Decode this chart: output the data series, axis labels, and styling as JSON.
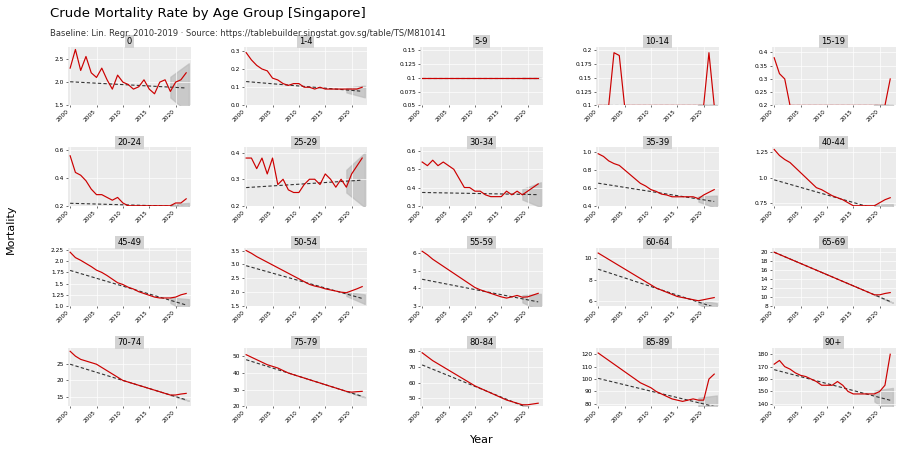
{
  "title": "Crude Mortality Rate by Age Group [Singapore]",
  "subtitle": "Baseline: Lin. Regr. 2010-2019 · Source: https://tablebuilder.singstat.gov.sg/table/TS/M810141",
  "ylabel": "Mortality",
  "xlabel": "Year",
  "background_color": "#FFFFFF",
  "panel_bg": "#EBEBEB",
  "age_groups": [
    "0",
    "1-4",
    "5-9",
    "10-14",
    "15-19",
    "20-24",
    "25-29",
    "30-34",
    "35-39",
    "40-44",
    "45-49",
    "50-54",
    "55-59",
    "60-64",
    "65-69",
    "70-74",
    "75-79",
    "80-84",
    "85-89",
    "90+"
  ],
  "years": [
    2000,
    2001,
    2002,
    2003,
    2004,
    2005,
    2006,
    2007,
    2008,
    2009,
    2010,
    2011,
    2012,
    2013,
    2014,
    2015,
    2016,
    2017,
    2018,
    2019,
    2020,
    2021,
    2022
  ],
  "data": {
    "0": [
      2.3,
      2.7,
      2.25,
      2.55,
      2.2,
      2.1,
      2.3,
      2.05,
      1.85,
      2.15,
      2.0,
      1.95,
      1.85,
      1.9,
      2.05,
      1.85,
      1.75,
      2.0,
      2.05,
      1.8,
      2.0,
      2.05,
      2.2
    ],
    "1-4": [
      0.29,
      0.25,
      0.22,
      0.2,
      0.19,
      0.15,
      0.14,
      0.12,
      0.11,
      0.12,
      0.12,
      0.1,
      0.1,
      0.09,
      0.1,
      0.09,
      0.09,
      0.09,
      0.09,
      0.09,
      0.09,
      0.09,
      0.1
    ],
    "5-9": [
      0.1,
      0.1,
      0.1,
      0.1,
      0.1,
      0.1,
      0.1,
      0.1,
      0.1,
      0.1,
      0.1,
      0.1,
      0.1,
      0.1,
      0.1,
      0.1,
      0.1,
      0.1,
      0.1,
      0.1,
      0.1,
      0.1,
      0.1
    ],
    "10-14": [
      0.1,
      0.1,
      0.1,
      0.195,
      0.19,
      0.1,
      0.1,
      0.1,
      0.1,
      0.1,
      0.1,
      0.1,
      0.1,
      0.1,
      0.1,
      0.1,
      0.1,
      0.1,
      0.1,
      0.1,
      0.1,
      0.195,
      0.1
    ],
    "15-19": [
      0.38,
      0.32,
      0.3,
      0.2,
      0.2,
      0.2,
      0.2,
      0.2,
      0.2,
      0.2,
      0.2,
      0.2,
      0.2,
      0.2,
      0.2,
      0.2,
      0.2,
      0.2,
      0.2,
      0.2,
      0.2,
      0.2,
      0.3
    ],
    "20-24": [
      0.56,
      0.44,
      0.42,
      0.38,
      0.32,
      0.28,
      0.28,
      0.26,
      0.24,
      0.26,
      0.22,
      0.2,
      0.2,
      0.2,
      0.2,
      0.2,
      0.2,
      0.2,
      0.2,
      0.2,
      0.22,
      0.22,
      0.25
    ],
    "25-29": [
      0.38,
      0.38,
      0.34,
      0.38,
      0.32,
      0.38,
      0.28,
      0.3,
      0.26,
      0.25,
      0.25,
      0.28,
      0.3,
      0.3,
      0.28,
      0.32,
      0.3,
      0.27,
      0.3,
      0.27,
      0.32,
      0.35,
      0.38
    ],
    "30-34": [
      0.54,
      0.52,
      0.55,
      0.52,
      0.54,
      0.52,
      0.5,
      0.45,
      0.4,
      0.4,
      0.38,
      0.38,
      0.36,
      0.35,
      0.35,
      0.35,
      0.38,
      0.36,
      0.38,
      0.36,
      0.38,
      0.4,
      0.42
    ],
    "35-39": [
      0.98,
      0.95,
      0.9,
      0.87,
      0.85,
      0.8,
      0.75,
      0.7,
      0.65,
      0.62,
      0.58,
      0.56,
      0.53,
      0.52,
      0.5,
      0.5,
      0.5,
      0.5,
      0.5,
      0.48,
      0.52,
      0.55,
      0.58
    ],
    "40-44": [
      1.28,
      1.22,
      1.18,
      1.15,
      1.1,
      1.05,
      1.0,
      0.95,
      0.9,
      0.88,
      0.85,
      0.82,
      0.8,
      0.78,
      0.75,
      0.72,
      0.72,
      0.72,
      0.72,
      0.72,
      0.75,
      0.78,
      0.8
    ],
    "45-49": [
      2.2,
      2.08,
      2.02,
      1.95,
      1.88,
      1.8,
      1.75,
      1.68,
      1.6,
      1.52,
      1.48,
      1.42,
      1.38,
      1.32,
      1.28,
      1.24,
      1.2,
      1.18,
      1.18,
      1.18,
      1.2,
      1.25,
      1.28
    ],
    "50-54": [
      3.5,
      3.4,
      3.28,
      3.18,
      3.08,
      2.98,
      2.88,
      2.78,
      2.68,
      2.58,
      2.48,
      2.38,
      2.28,
      2.22,
      2.18,
      2.12,
      2.08,
      2.04,
      2.0,
      1.98,
      2.05,
      2.12,
      2.2
    ],
    "55-59": [
      6.1,
      5.9,
      5.65,
      5.45,
      5.25,
      5.05,
      4.85,
      4.65,
      4.45,
      4.25,
      4.05,
      3.92,
      3.82,
      3.72,
      3.62,
      3.52,
      3.45,
      3.52,
      3.6,
      3.5,
      3.52,
      3.62,
      3.72
    ],
    "60-64": [
      10.5,
      10.2,
      9.9,
      9.6,
      9.3,
      9.0,
      8.7,
      8.4,
      8.1,
      7.8,
      7.5,
      7.2,
      7.0,
      6.8,
      6.6,
      6.4,
      6.3,
      6.2,
      6.1,
      6.0,
      6.1,
      6.2,
      6.3
    ],
    "65-69": [
      20.0,
      19.5,
      19.0,
      18.5,
      18.0,
      17.5,
      17.0,
      16.5,
      16.0,
      15.5,
      15.0,
      14.5,
      14.0,
      13.5,
      13.0,
      12.5,
      12.0,
      11.5,
      11.0,
      10.5,
      10.5,
      10.8,
      11.0
    ],
    "70-74": [
      29.0,
      27.5,
      26.5,
      26.0,
      25.5,
      25.0,
      24.0,
      23.0,
      22.0,
      21.0,
      20.0,
      19.5,
      19.0,
      18.5,
      18.0,
      17.5,
      17.0,
      16.5,
      16.0,
      15.5,
      15.5,
      15.8,
      16.0
    ],
    "75-79": [
      51.0,
      49.5,
      48.0,
      46.5,
      45.0,
      44.0,
      43.0,
      41.5,
      40.0,
      39.0,
      38.0,
      37.0,
      36.0,
      35.0,
      34.0,
      33.0,
      32.0,
      31.0,
      30.0,
      29.0,
      28.5,
      28.8,
      29.0
    ],
    "80-84": [
      79.0,
      76.5,
      74.0,
      72.0,
      70.0,
      68.0,
      66.0,
      64.0,
      62.0,
      60.0,
      58.0,
      56.5,
      55.0,
      53.5,
      52.0,
      50.5,
      49.0,
      48.0,
      47.0,
      46.0,
      46.0,
      46.5,
      47.0
    ],
    "85-89": [
      121.0,
      118.0,
      115.0,
      112.0,
      109.0,
      106.0,
      103.0,
      100.0,
      97.0,
      95.0,
      93.0,
      90.0,
      88.0,
      86.0,
      84.0,
      83.0,
      82.0,
      83.0,
      84.0,
      83.0,
      83.0,
      100.0,
      104.0
    ],
    "90+": [
      172.0,
      175.0,
      170.0,
      168.0,
      165.0,
      163.0,
      162.0,
      160.0,
      158.0,
      155.0,
      155.0,
      155.0,
      158.0,
      155.0,
      150.0,
      148.0,
      148.0,
      148.0,
      148.0,
      148.0,
      150.0,
      155.0,
      180.0
    ]
  },
  "ylims": {
    "0": [
      1.5,
      2.75
    ],
    "1-4": [
      0.0,
      0.32
    ],
    "5-9": [
      0.05,
      0.155
    ],
    "10-14": [
      0.1,
      0.205
    ],
    "15-19": [
      0.2,
      0.42
    ],
    "20-24": [
      0.2,
      0.62
    ],
    "25-29": [
      0.2,
      0.42
    ],
    "30-34": [
      0.3,
      0.62
    ],
    "35-39": [
      0.4,
      1.05
    ],
    "40-44": [
      0.72,
      1.3
    ],
    "45-49": [
      1.0,
      2.3
    ],
    "50-54": [
      1.5,
      3.6
    ],
    "55-59": [
      3.0,
      6.3
    ],
    "60-64": [
      5.5,
      11.0
    ],
    "65-69": [
      8.0,
      21.0
    ],
    "70-74": [
      12.0,
      30.0
    ],
    "75-79": [
      20.0,
      55.0
    ],
    "80-84": [
      45.0,
      82.0
    ],
    "85-89": [
      78.0,
      125.0
    ],
    "90+": [
      138.0,
      185.0
    ]
  },
  "yticks": {
    "0": [
      1.5,
      2.0,
      2.5
    ],
    "1-4": [
      0.0,
      0.1,
      0.2,
      0.3
    ],
    "5-9": [
      0.05,
      0.075,
      0.1,
      0.125,
      0.15
    ],
    "10-14": [
      0.1,
      0.125,
      0.15,
      0.175,
      0.2
    ],
    "15-19": [
      0.2,
      0.25,
      0.3,
      0.35,
      0.4
    ],
    "20-24": [
      0.2,
      0.4,
      0.6
    ],
    "25-29": [
      0.2,
      0.3,
      0.4
    ],
    "30-34": [
      0.3,
      0.4,
      0.5,
      0.6
    ],
    "35-39": [
      0.4,
      0.6,
      0.8,
      1.0
    ],
    "40-44": [
      0.75,
      1.0,
      1.25
    ],
    "45-49": [
      1.0,
      1.25,
      1.5,
      1.75,
      2.0,
      2.25
    ],
    "50-54": [
      1.5,
      2.0,
      2.5,
      3.0,
      3.5
    ],
    "55-59": [
      3,
      4,
      5,
      6
    ],
    "60-64": [
      6,
      8,
      10
    ],
    "65-69": [
      8,
      10,
      12,
      14,
      16,
      18,
      20
    ],
    "70-74": [
      15,
      20,
      25
    ],
    "75-79": [
      20,
      30,
      40,
      50
    ],
    "80-84": [
      50,
      60,
      70,
      80
    ],
    "85-89": [
      80,
      90,
      100,
      110,
      120
    ],
    "90+": [
      140,
      150,
      160,
      170,
      180
    ]
  }
}
